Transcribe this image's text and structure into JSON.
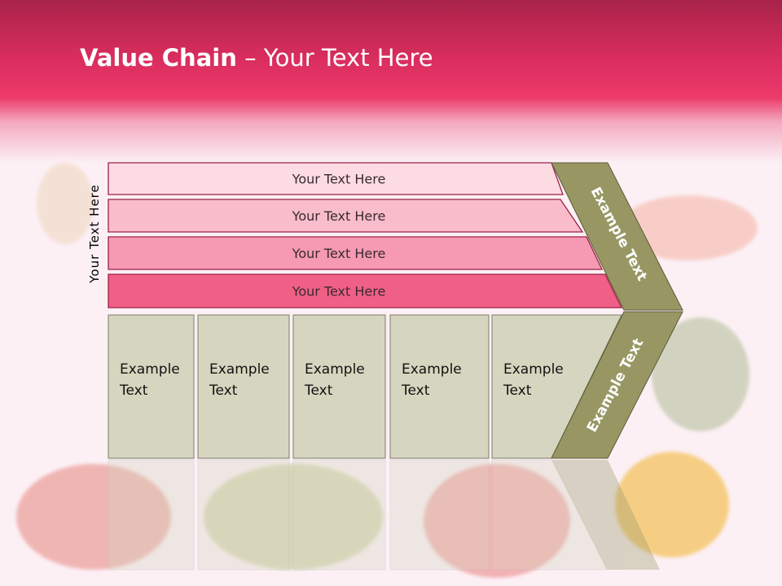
{
  "slide": {
    "title_bold": "Value Chain",
    "title_rest": " – Your Text Here"
  },
  "diagram": {
    "side_label": "Your Text Here",
    "bars": [
      "Your Text Here",
      "Your Text Here",
      "Your Text Here",
      "Your Text Here"
    ],
    "bar_colors": [
      "#fcdbe3",
      "#f9bccb",
      "#f59ab2",
      "#f05f86"
    ],
    "boxes": [
      {
        "line1": "Example",
        "line2": "Text"
      },
      {
        "line1": "Example",
        "line2": "Text"
      },
      {
        "line1": "Example",
        "line2": "Text"
      },
      {
        "line1": "Example",
        "line2": "Text"
      },
      {
        "line1": "Example",
        "line2": "Text"
      }
    ],
    "box_color": "#d6d6c0",
    "chevron_color": "#989764",
    "chevron_top_label": "Example Text",
    "chevron_bottom_label": "Example Text"
  }
}
